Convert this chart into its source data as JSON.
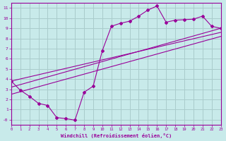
{
  "xlabel": "Windchill (Refroidissement éolien,°C)",
  "bg_color": "#c8eaea",
  "line_color": "#990099",
  "grid_color": "#aacccc",
  "scatter_x": [
    0,
    1,
    2,
    3,
    4,
    5,
    6,
    7,
    8,
    9,
    10,
    11,
    12,
    13,
    14,
    15,
    16,
    17,
    18,
    19,
    20,
    21,
    22,
    23
  ],
  "scatter_y": [
    3.8,
    2.9,
    2.3,
    1.6,
    1.4,
    0.2,
    0.1,
    -0.05,
    2.7,
    3.3,
    6.8,
    9.2,
    9.5,
    9.7,
    10.2,
    10.8,
    11.2,
    9.6,
    9.8,
    9.85,
    9.9,
    10.2,
    9.2,
    9.0
  ],
  "line1_x": [
    0,
    23
  ],
  "line1_y": [
    3.2,
    9.0
  ],
  "line2_x": [
    0,
    23
  ],
  "line2_y": [
    3.8,
    8.6
  ],
  "line3_x": [
    0,
    23
  ],
  "line3_y": [
    2.5,
    8.2
  ],
  "xlim": [
    0,
    23
  ],
  "ylim": [
    -0.5,
    11.5
  ],
  "xticks": [
    0,
    1,
    2,
    3,
    4,
    5,
    6,
    7,
    8,
    9,
    10,
    11,
    12,
    13,
    14,
    15,
    16,
    17,
    18,
    19,
    20,
    21,
    22,
    23
  ],
  "yticks": [
    0,
    1,
    2,
    3,
    4,
    5,
    6,
    7,
    8,
    9,
    10,
    11
  ],
  "ytick_labels": [
    "-0",
    "1",
    "2",
    "3",
    "4",
    "5",
    "6",
    "7",
    "8",
    "9",
    "10",
    "11"
  ]
}
